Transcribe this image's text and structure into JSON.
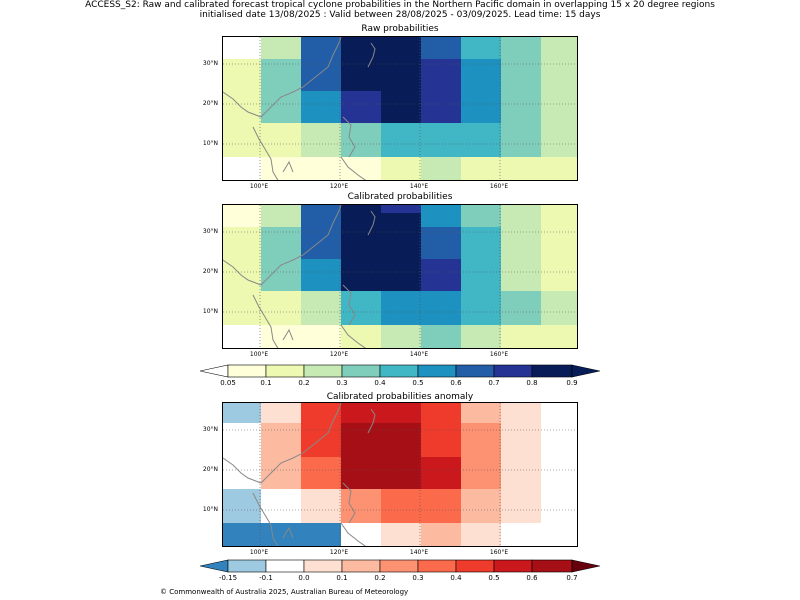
{
  "title_line1": "ACCESS_S2: Raw and calibrated forecast tropical cyclone probabilities in the Northern Pacific domain in overlapping 15 x 20 degree regions",
  "title_line2": "initialised date 13/08/2025 :  Valid between 28/08/2025 - 03/09/2025. Lead time: 15 days",
  "panels": [
    {
      "title": "Raw probabilities"
    },
    {
      "title": "Calibrated probabilities"
    },
    {
      "title": "Calibrated probabilities anomaly"
    }
  ],
  "lat_labels": [
    "30°N",
    "20°N",
    "10°N"
  ],
  "lon_labels": [
    "100°E",
    "120°E",
    "140°E",
    "160°E"
  ],
  "prob_colorbar": {
    "ticks": [
      "0.05",
      "0.1",
      "0.2",
      "0.3",
      "0.4",
      "0.5",
      "0.6",
      "0.7",
      "0.8",
      "0.9"
    ],
    "colors": [
      "#ffffd9",
      "#edf8b1",
      "#c7e9b4",
      "#7fcdbb",
      "#41b6c4",
      "#1d91c0",
      "#225ea8",
      "#0c2c84",
      "#253494",
      "#081d58"
    ],
    "under_color": "#ffffff",
    "over_color": "#081d58"
  },
  "anom_colorbar": {
    "ticks": [
      "-0.15",
      "-0.1",
      "0.0",
      "0.1",
      "0.2",
      "0.3",
      "0.4",
      "0.5",
      "0.6",
      "0.7"
    ],
    "colors": [
      "#9ecae1",
      "#ffffff",
      "#fee0d2",
      "#fcbba1",
      "#fc9272",
      "#fb6a4a",
      "#ef3b2c",
      "#cb181d",
      "#a50f15"
    ],
    "under_color": "#3182bd",
    "over_color": "#67000d"
  },
  "footer": "© Commonwealth of Australia 2025, Australian Bureau of Meteorology"
}
